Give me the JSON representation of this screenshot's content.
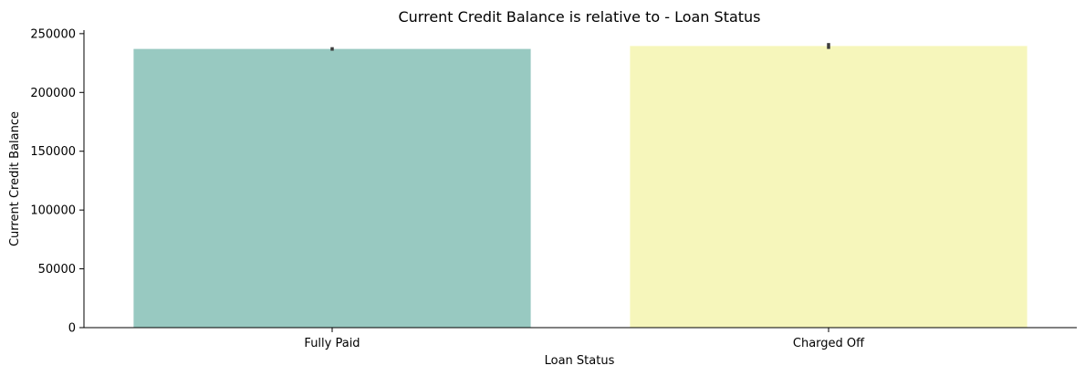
{
  "chart_data": {
    "type": "bar",
    "title": "Current Credit Balance is relative to - Loan Status",
    "xlabel": "Loan Status",
    "ylabel": "Current Credit Balance",
    "categories": [
      "Fully Paid",
      "Charged Off"
    ],
    "values": [
      237000,
      239500
    ],
    "error_bars": [
      [
        235500,
        238500
      ],
      [
        237000,
        242000
      ]
    ],
    "colors": [
      "#98c9c1",
      "#f6f6bb"
    ],
    "ylim": [
      0,
      253000
    ],
    "yticks": [
      0,
      50000,
      100000,
      150000,
      200000,
      250000
    ],
    "ytick_labels": [
      "0",
      "50000",
      "100000",
      "150000",
      "200000",
      "250000"
    ],
    "grid": false,
    "legend": "none"
  }
}
